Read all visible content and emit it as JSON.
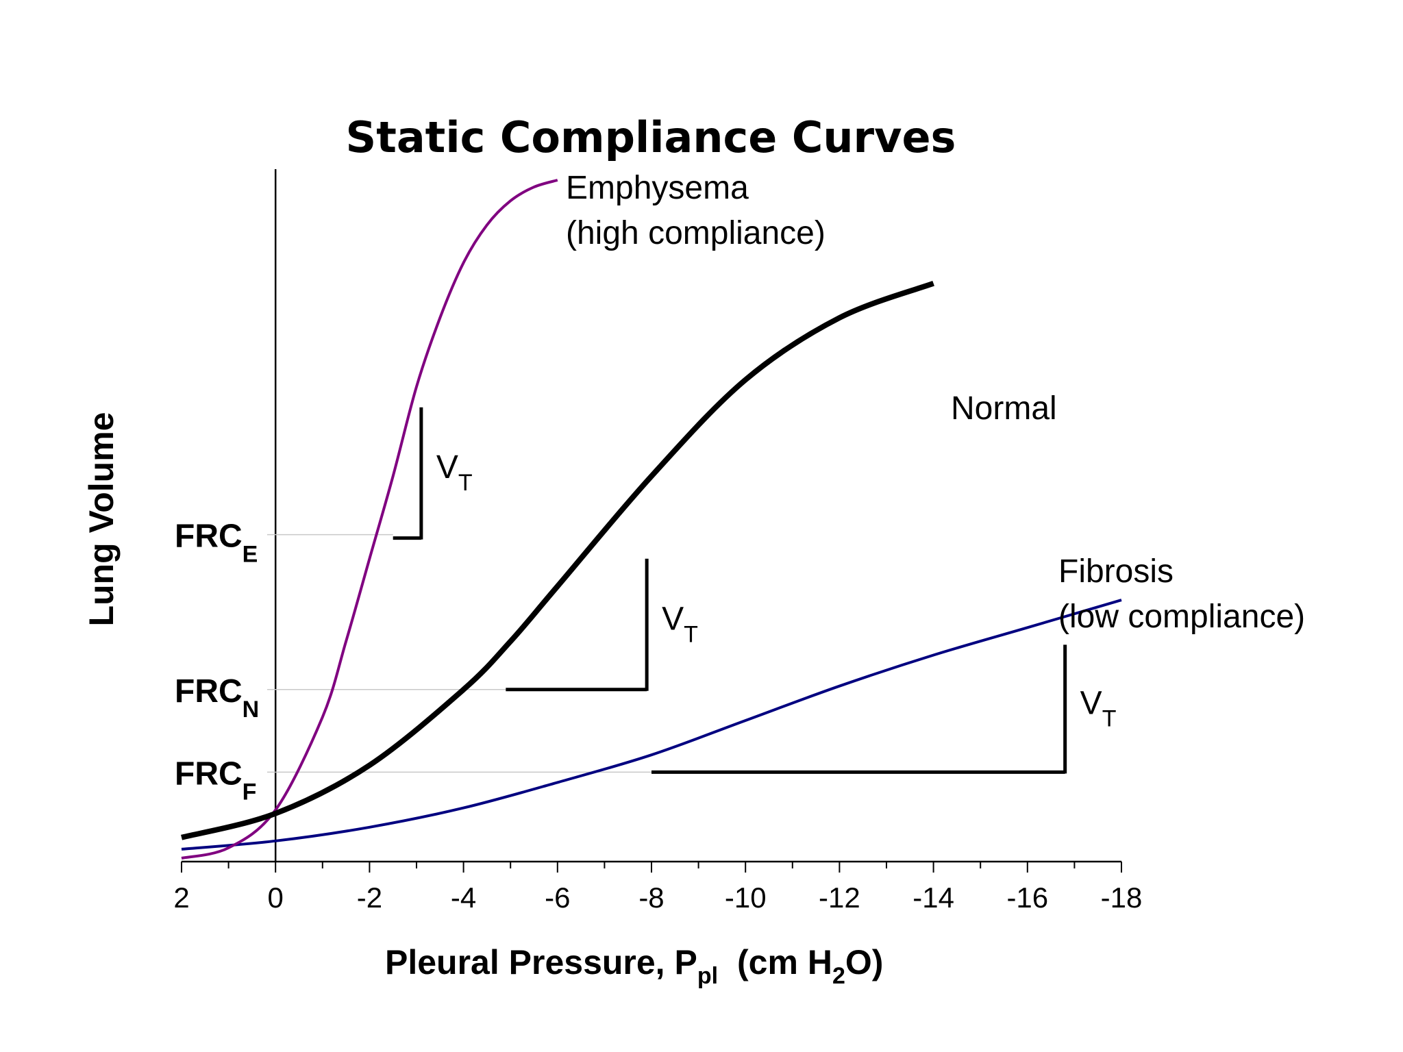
{
  "chart_data": {
    "type": "line",
    "title": "Static Compliance Curves",
    "xlabel": {
      "main": "Pleural Pressure, P",
      "sub": "pl",
      "unit_open": "(cm H",
      "unit_sub": "2",
      "unit_close": "O)"
    },
    "ylabel": "Lung Volume",
    "xlim": [
      2,
      -18
    ],
    "ylim": [
      0,
      100
    ],
    "xticks": [
      2,
      0,
      -2,
      -4,
      -6,
      -8,
      -10,
      -12,
      -14,
      -16,
      -18
    ],
    "xtick_labels": [
      "2",
      "0",
      "-2",
      "-4",
      "-6",
      "-8",
      "-10",
      "-12",
      "-14",
      "-16",
      "-18"
    ],
    "grid": false,
    "series": [
      {
        "name": "Emphysema",
        "label_line1": "Emphysema",
        "label_line2": "(high compliance)",
        "color": "#800080",
        "x": [
          2,
          1,
          0,
          -1,
          -1.5,
          -2,
          -2.5,
          -3,
          -3.5,
          -4,
          -4.5,
          -5,
          -5.5,
          -6
        ],
        "y": [
          0.5,
          2.0,
          7.5,
          21,
          32,
          44,
          56,
          69,
          79,
          87,
          92.5,
          96,
          98,
          99
        ]
      },
      {
        "name": "Normal",
        "label_line1": "Normal",
        "color": "#000000",
        "x": [
          2,
          0,
          -2,
          -4,
          -5,
          -6,
          -8,
          -10,
          -12,
          -14
        ],
        "y": [
          3.5,
          7.0,
          14,
          25,
          32,
          40,
          56,
          70,
          79,
          84
        ]
      },
      {
        "name": "Fibrosis",
        "label_line1": "Fibrosis",
        "label_line2": "(low compliance)",
        "color": "#000080",
        "x": [
          2,
          0,
          -2,
          -4,
          -6,
          -8,
          -10,
          -12,
          -14,
          -16,
          -18
        ],
        "y": [
          1.8,
          3.0,
          5.0,
          7.8,
          11.5,
          15.5,
          20.5,
          25.5,
          30,
          34,
          38
        ]
      }
    ],
    "annotations": {
      "frc": [
        {
          "label": "FRC",
          "sub": "E",
          "y": 47.5,
          "x_end": -2.5
        },
        {
          "label": "FRC",
          "sub": "N",
          "y": 25.0,
          "x_end": -4.95
        },
        {
          "label": "FRC",
          "sub": "F",
          "y": 13.0,
          "x_end": -8.0
        }
      ],
      "tidal_volume": [
        {
          "label": "V",
          "sub": "T",
          "x_start": -2.5,
          "x_end": -3.1,
          "y_low": 47.0,
          "y_high": 66.0
        },
        {
          "label": "V",
          "sub": "T",
          "x_start": -4.9,
          "x_end": -7.9,
          "y_low": 25.0,
          "y_high": 44.0
        },
        {
          "label": "V",
          "sub": "T",
          "x_start": -8.0,
          "x_end": -16.8,
          "y_low": 13.0,
          "y_high": 31.5
        }
      ]
    }
  }
}
